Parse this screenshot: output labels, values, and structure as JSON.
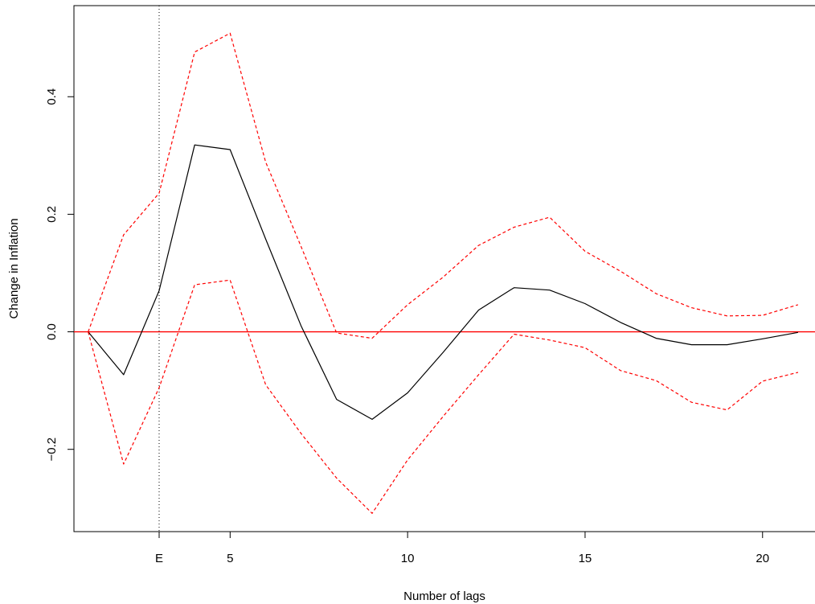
{
  "chart_data": {
    "type": "line",
    "title": "",
    "xlabel": "Number of lags",
    "ylabel": "Change in Inflation",
    "xlim": [
      0.6,
      21.5
    ],
    "ylim": [
      -0.34,
      0.555
    ],
    "x_ticks": [
      {
        "value": 3,
        "label": "E"
      },
      {
        "value": 5,
        "label": "5"
      },
      {
        "value": 10,
        "label": "10"
      },
      {
        "value": 15,
        "label": "15"
      },
      {
        "value": 20,
        "label": "20"
      }
    ],
    "y_ticks": [
      {
        "value": -0.2,
        "label": "−0.2"
      },
      {
        "value": 0.0,
        "label": "0.0"
      },
      {
        "value": 0.2,
        "label": "0.2"
      },
      {
        "value": 0.4,
        "label": "0.4"
      }
    ],
    "x": [
      1,
      2,
      3,
      4,
      5,
      6,
      7,
      8,
      9,
      10,
      11,
      12,
      13,
      14,
      15,
      16,
      17,
      18,
      19,
      20,
      21
    ],
    "series": [
      {
        "role": "estimate",
        "color": "#000000",
        "dash": "solid",
        "values": [
          0.0,
          -0.073,
          0.07,
          0.318,
          0.31,
          0.158,
          0.01,
          -0.115,
          -0.149,
          -0.104,
          -0.035,
          0.037,
          0.075,
          0.071,
          0.048,
          0.016,
          -0.011,
          -0.022,
          -0.022,
          -0.012,
          -0.001
        ]
      },
      {
        "role": "upper_band",
        "color": "#ff0000",
        "dash": "dashed",
        "values": [
          0.0,
          0.165,
          0.236,
          0.476,
          0.508,
          0.289,
          0.145,
          -0.002,
          -0.011,
          0.046,
          0.093,
          0.147,
          0.178,
          0.195,
          0.137,
          0.103,
          0.065,
          0.041,
          0.027,
          0.028,
          0.046
        ]
      },
      {
        "role": "lower_band",
        "color": "#ff0000",
        "dash": "dashed",
        "values": [
          0.0,
          -0.225,
          -0.095,
          0.08,
          0.088,
          -0.09,
          -0.173,
          -0.249,
          -0.309,
          -0.218,
          -0.144,
          -0.073,
          -0.004,
          -0.014,
          -0.027,
          -0.066,
          -0.083,
          -0.12,
          -0.133,
          -0.084,
          -0.069
        ]
      }
    ],
    "hlines": [
      {
        "y": 0.0,
        "color": "#ff0000"
      }
    ],
    "vlines": [
      {
        "x": 3,
        "color": "#000000",
        "style": "dotted"
      }
    ],
    "grid": false,
    "legend": "none"
  }
}
